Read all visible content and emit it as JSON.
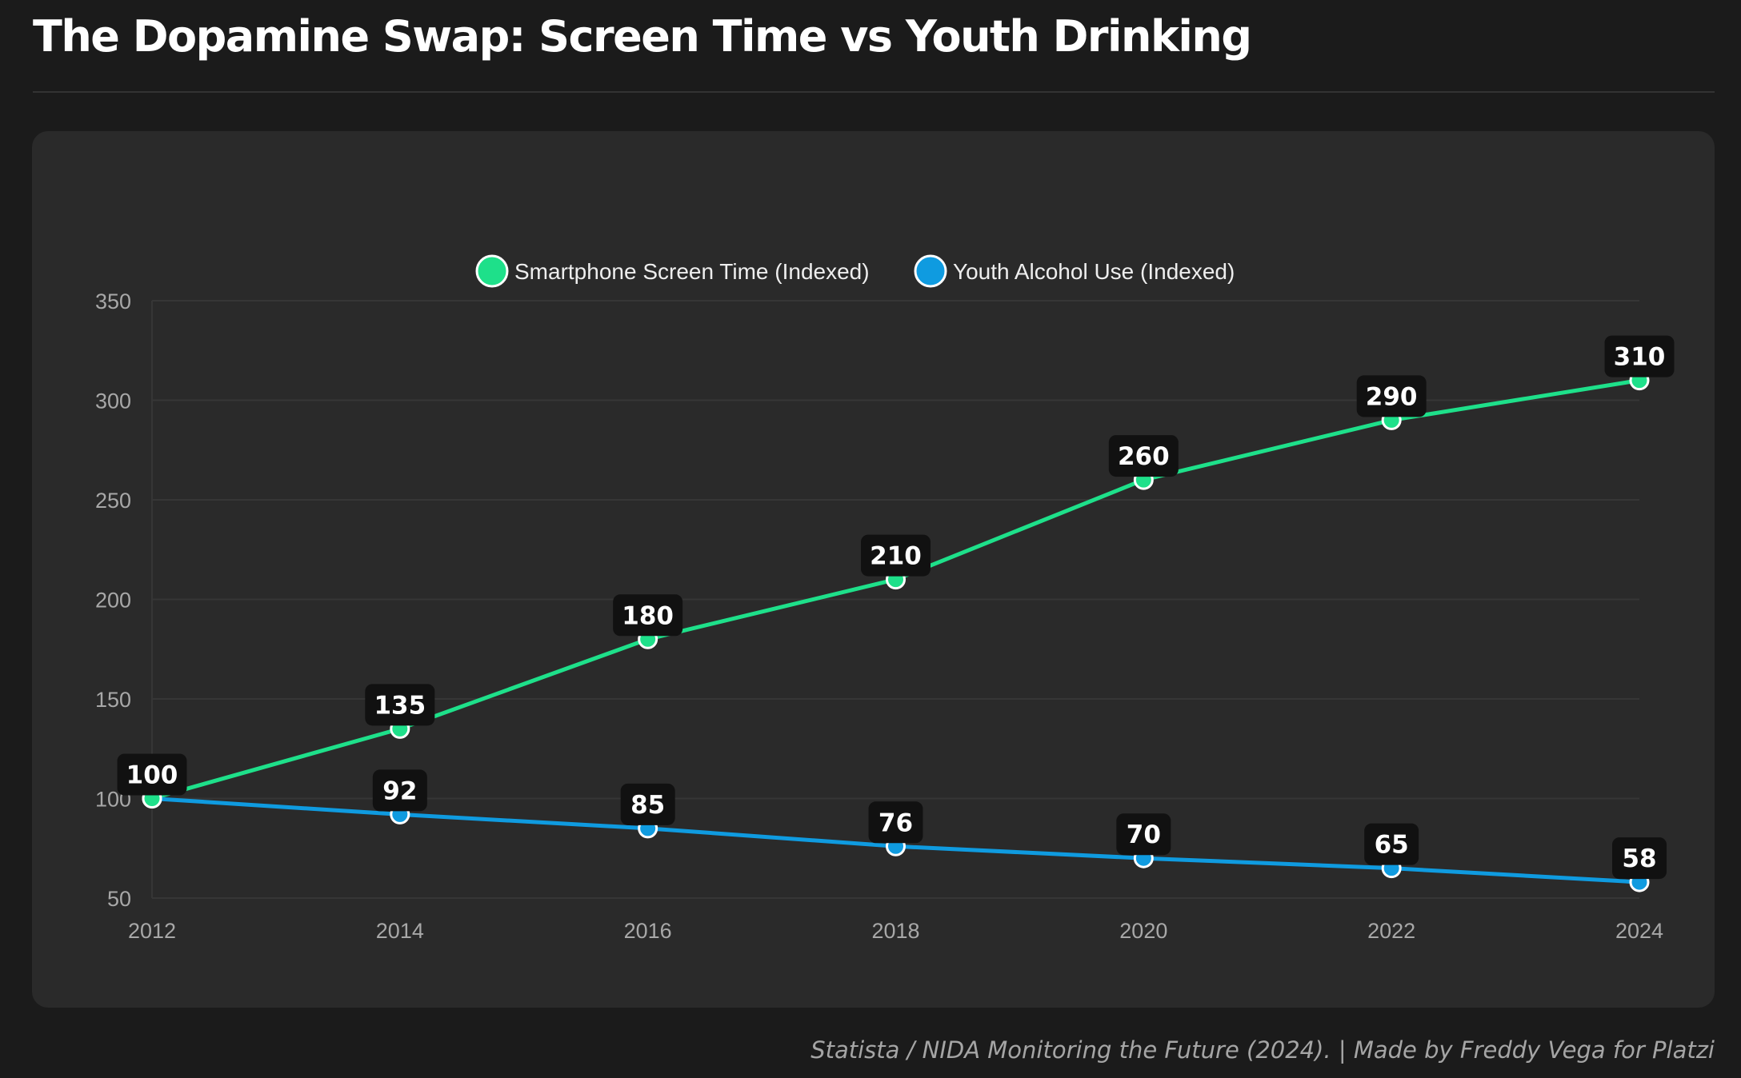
{
  "title": "The Dopamine Swap: Screen Time vs Youth Drinking",
  "footer": "Statista / NIDA Monitoring the Future (2024). | Made by Freddy Vega for Platzi",
  "chart_data": {
    "type": "line",
    "title": "The Dopamine Swap: Screen Time vs Youth Drinking",
    "x": [
      "2012",
      "2014",
      "2016",
      "2018",
      "2020",
      "2022",
      "2024"
    ],
    "series": [
      {
        "name": "Smartphone Screen Time (Indexed)",
        "color": "#1ee08a",
        "values": [
          100,
          135,
          180,
          210,
          260,
          290,
          310
        ]
      },
      {
        "name": "Youth Alcohol Use (Indexed)",
        "color": "#0f9be0",
        "values": [
          100,
          92,
          85,
          76,
          70,
          65,
          58
        ]
      }
    ],
    "ylim": [
      50,
      350
    ],
    "yticks": [
      50,
      100,
      150,
      200,
      250,
      300,
      350
    ],
    "grid": true,
    "legend": "top-center",
    "xlabel": "",
    "ylabel": ""
  }
}
